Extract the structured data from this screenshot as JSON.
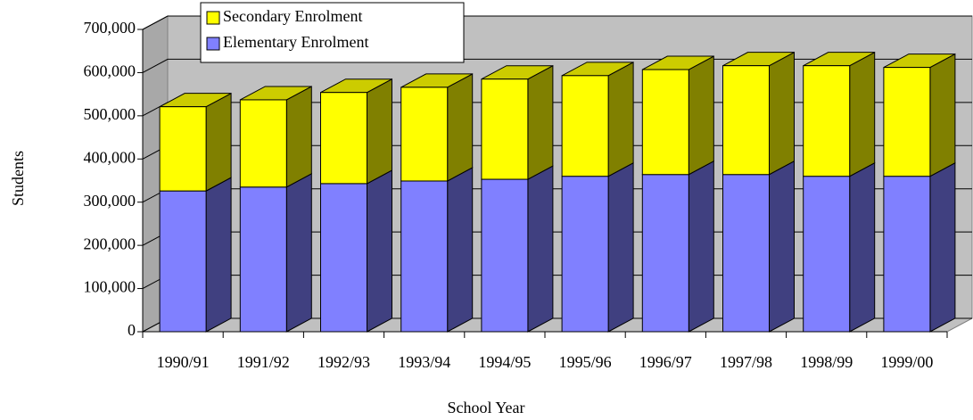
{
  "chart_data": {
    "type": "bar3d_stacked",
    "xlabel": "School Year",
    "ylabel": "Students",
    "categories": [
      "1990/91",
      "1991/92",
      "1992/93",
      "1993/94",
      "1994/95",
      "1995/96",
      "1996/97",
      "1997/98",
      "1998/99",
      "1999/00"
    ],
    "series": [
      {
        "name": "Elementary Enrolment",
        "color": "#8080ff",
        "values": [
          326000,
          335000,
          343000,
          349000,
          353000,
          360000,
          364000,
          364000,
          360000,
          360000
        ]
      },
      {
        "name": "Secondary Enrolment",
        "color": "#ffff00",
        "values": [
          195000,
          202000,
          211000,
          217000,
          232000,
          233000,
          243000,
          252000,
          256000,
          252000
        ]
      }
    ],
    "ylim": [
      0,
      700000
    ],
    "yticks": [
      0,
      {
        "value": 100000,
        "label": "100,000"
      },
      {
        "value": 200000,
        "label": "200,000"
      },
      {
        "value": 300000,
        "label": "300,000"
      },
      {
        "value": 400000,
        "label": "400,000"
      },
      {
        "value": 500000,
        "label": "500,000"
      },
      {
        "value": 600000,
        "label": "600,000"
      },
      {
        "value": 700000,
        "label": "700,000"
      }
    ],
    "grid": true
  }
}
